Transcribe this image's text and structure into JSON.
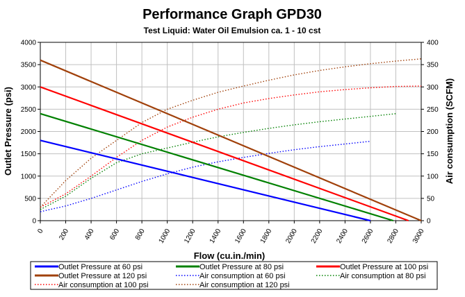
{
  "chart_data": {
    "type": "line",
    "title": "Performance Graph GPD30",
    "subtitle": "Test Liquid: Water Oil Emulsion ca. 1 - 10 cst",
    "xlabel": "Flow (cu.in./min)",
    "ylabel": "Outlet Pressure (psi)",
    "y2label": "Air consumption (SCFM)",
    "xlim": [
      0,
      3000
    ],
    "ylim": [
      0,
      4000
    ],
    "y2lim": [
      0,
      400
    ],
    "xticks": [
      "0",
      "200",
      "400",
      "600",
      "800",
      "1000",
      "1200",
      "1400",
      "1600",
      "1800",
      "2000",
      "2200",
      "2400",
      "2600",
      "2800",
      "3000"
    ],
    "yticks": [
      "0",
      "500",
      "1000",
      "1500",
      "2000",
      "2500",
      "3000",
      "3500",
      "4000"
    ],
    "y2ticks": [
      "0",
      "50",
      "100",
      "150",
      "200",
      "250",
      "300",
      "350",
      "400"
    ],
    "grid": true,
    "legend_position": "bottom",
    "series": [
      {
        "name": "Outlet Pressure at 60 psi",
        "axis": "left",
        "style": "solid",
        "color": "#0000ff",
        "x": [
          0,
          2600
        ],
        "y": [
          1800,
          0
        ]
      },
      {
        "name": "Outlet Pressure at 80 psi",
        "axis": "left",
        "style": "solid",
        "color": "#008000",
        "x": [
          0,
          2780
        ],
        "y": [
          2400,
          0
        ]
      },
      {
        "name": "Outlet Pressure at 100 psi",
        "axis": "left",
        "style": "solid",
        "color": "#ff0000",
        "x": [
          0,
          2900
        ],
        "y": [
          3000,
          0
        ]
      },
      {
        "name": "Outlet Pressure at 120 psi",
        "axis": "left",
        "style": "solid",
        "color": "#a0400a",
        "x": [
          0,
          3000
        ],
        "y": [
          3600,
          0
        ]
      },
      {
        "name": "Air consumption at 60 psi",
        "axis": "right",
        "style": "dotted",
        "color": "#0000ff",
        "x": [
          0,
          200,
          400,
          600,
          800,
          1000,
          1200,
          1400,
          1600,
          1800,
          2000,
          2200,
          2400,
          2600
        ],
        "y": [
          20,
          33,
          50,
          69,
          88,
          105,
          120,
          132,
          142,
          151,
          159,
          166,
          172,
          178
        ]
      },
      {
        "name": "Air consumption at 80 psi",
        "axis": "right",
        "style": "dotted",
        "color": "#008000",
        "x": [
          0,
          200,
          400,
          600,
          800,
          1000,
          1200,
          1400,
          1600,
          1800,
          2000,
          2200,
          2400,
          2600,
          2800
        ],
        "y": [
          25,
          55,
          95,
          130,
          150,
          163,
          176,
          188,
          198,
          207,
          215,
          222,
          228,
          234,
          240
        ]
      },
      {
        "name": "Air consumption at 100 psi",
        "axis": "right",
        "style": "dotted",
        "color": "#ff0000",
        "x": [
          0,
          200,
          400,
          600,
          800,
          1000,
          1200,
          1400,
          1600,
          1800,
          2000,
          2200,
          2400,
          2600,
          2800,
          3000
        ],
        "y": [
          30,
          60,
          100,
          142,
          180,
          210,
          232,
          250,
          264,
          274,
          282,
          289,
          294,
          298,
          301,
          302
        ]
      },
      {
        "name": "Air consumption at 120 psi",
        "axis": "right",
        "style": "dotted",
        "color": "#a0400a",
        "x": [
          0,
          200,
          400,
          600,
          800,
          1000,
          1200,
          1400,
          1600,
          1800,
          2000,
          2200,
          2400,
          2600,
          2800,
          3000
        ],
        "y": [
          30,
          90,
          140,
          180,
          220,
          250,
          270,
          288,
          302,
          315,
          327,
          337,
          345,
          352,
          358,
          363
        ]
      }
    ]
  }
}
